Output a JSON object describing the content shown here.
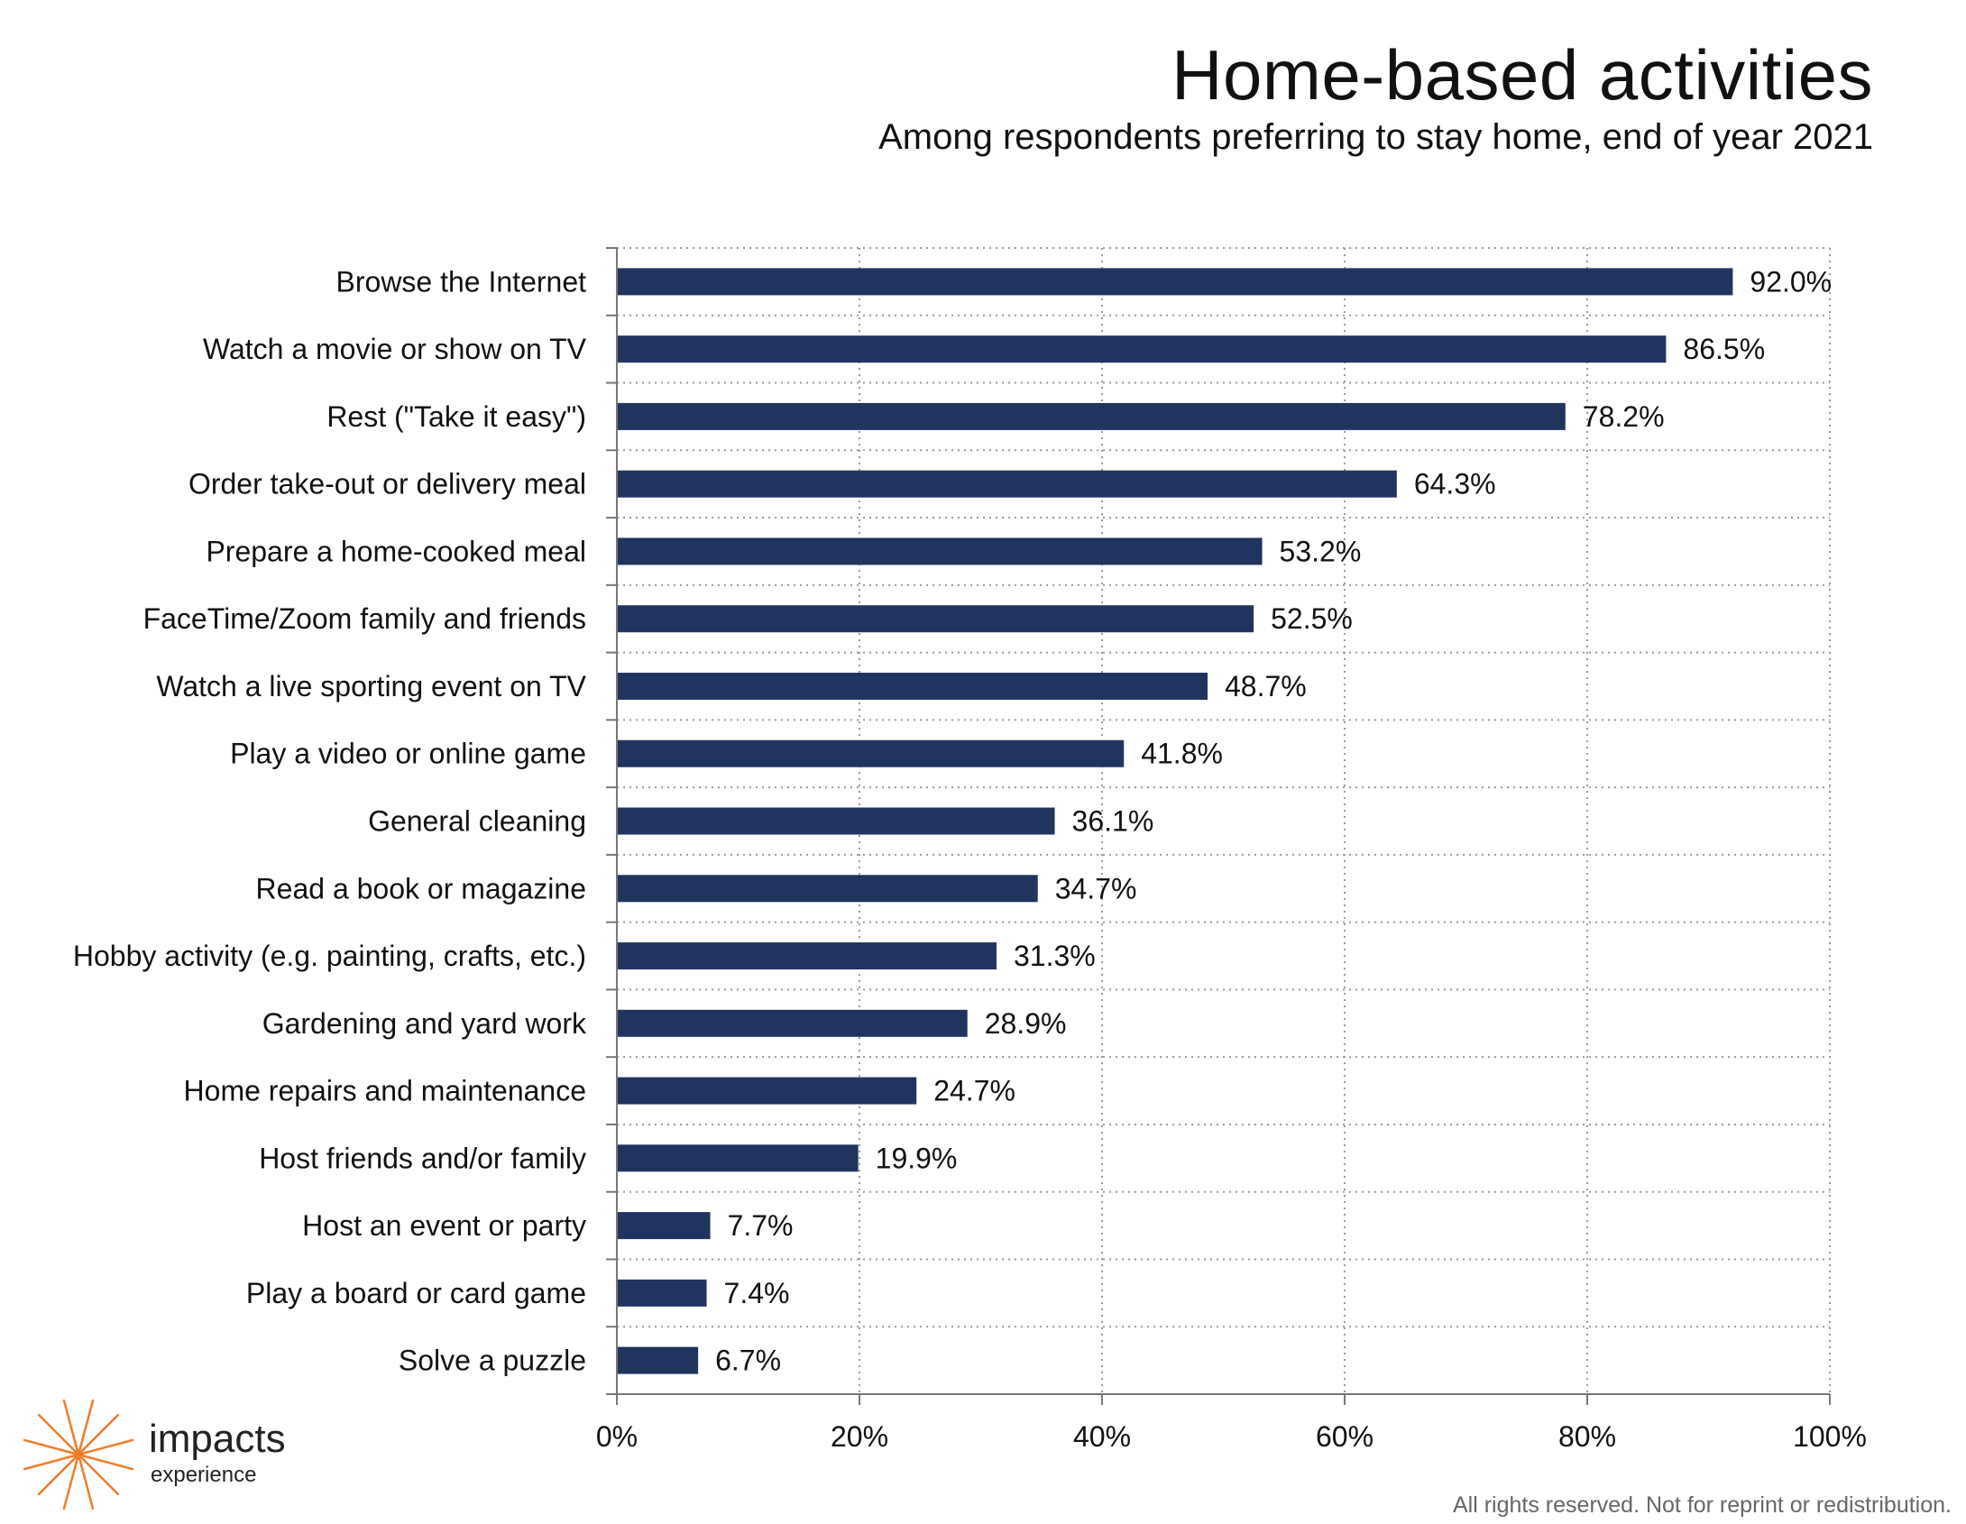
{
  "chart_data": {
    "type": "bar",
    "orientation": "horizontal",
    "title": "Home-based activities",
    "subtitle": "Among respondents preferring to stay home, end of year 2021",
    "categories": [
      "Browse the Internet",
      "Watch a movie or show on TV",
      "Rest (\"Take it easy\")",
      "Order take-out or delivery meal",
      "Prepare a home-cooked meal",
      "FaceTime/Zoom family and friends",
      "Watch a live sporting event on TV",
      "Play a video or online game",
      "General cleaning",
      "Read a book or magazine",
      "Hobby activity (e.g. painting, crafts, etc.)",
      "Gardening and yard work",
      "Home repairs and maintenance",
      "Host friends and/or family",
      "Host an event or party",
      "Play a board or card game",
      "Solve a puzzle"
    ],
    "values": [
      92.0,
      86.5,
      78.2,
      64.3,
      53.2,
      52.5,
      48.7,
      41.8,
      36.1,
      34.7,
      31.3,
      28.9,
      24.7,
      19.9,
      7.7,
      7.4,
      6.7
    ],
    "data_labels": [
      "92.0%",
      "86.5%",
      "78.2%",
      "64.3%",
      "53.2%",
      "52.5%",
      "48.7%",
      "41.8%",
      "36.1%",
      "34.7%",
      "31.3%",
      "28.9%",
      "24.7%",
      "19.9%",
      "7.7%",
      "7.4%",
      "6.7%"
    ],
    "xlim": [
      0,
      100
    ],
    "x_ticks": [
      0,
      20,
      40,
      60,
      80,
      100
    ],
    "x_tick_labels": [
      "0%",
      "20%",
      "40%",
      "60%",
      "80%",
      "100%"
    ],
    "xlabel": "",
    "ylabel": "",
    "grid": true,
    "grid_style": "dotted",
    "legend": "none",
    "bar_color": "#1f3560"
  },
  "branding": {
    "name": "impacts",
    "tagline": "experience",
    "logo_icon": "starburst-icon",
    "logo_color": "#f07c2a"
  },
  "footer": {
    "text": "All rights reserved. Not for reprint or redistribution."
  }
}
